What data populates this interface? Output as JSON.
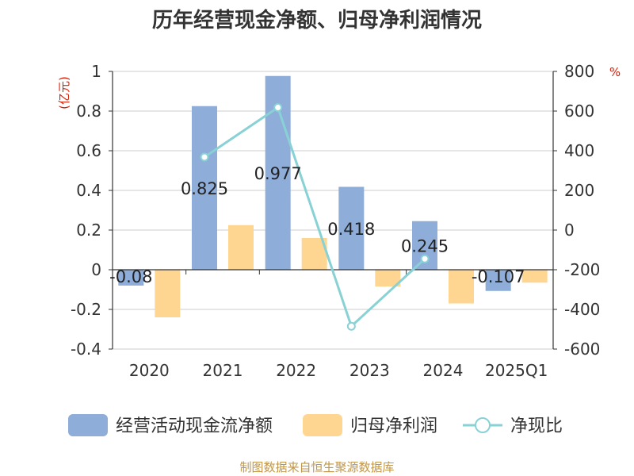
{
  "chart_data": {
    "type": "bar+line",
    "title": "历年经营现金净额、归母净利润情况",
    "categories": [
      "2020",
      "2021",
      "2022",
      "2023",
      "2024",
      "2025Q1"
    ],
    "left_axis": {
      "unit": "(亿元)",
      "range": [
        -0.4,
        1
      ],
      "ticks": [
        "1",
        "0.8",
        "0.6",
        "0.4",
        "0.2",
        "0",
        "-0.2",
        "-0.4"
      ]
    },
    "right_axis": {
      "unit": "%",
      "range": [
        -600,
        800
      ],
      "ticks": [
        "800",
        "600",
        "400",
        "200",
        "0",
        "-200",
        "-400",
        "-600"
      ]
    },
    "series": [
      {
        "name": "经营活动现金流净额",
        "type": "bar",
        "axis": "left",
        "color": "#8eadd9",
        "values": [
          -0.08,
          0.825,
          0.977,
          0.418,
          0.245,
          -0.107
        ],
        "labels": [
          "-0.08",
          "0.825",
          "0.977",
          "0.418",
          "0.245",
          "-0.107"
        ]
      },
      {
        "name": "归母净利润",
        "type": "bar",
        "axis": "left",
        "color": "#ffd592",
        "values": [
          -0.24,
          0.225,
          0.16,
          -0.085,
          -0.17,
          -0.065
        ]
      },
      {
        "name": "净现比",
        "type": "line",
        "axis": "right",
        "color": "#88d1d5",
        "values": [
          null,
          368,
          618,
          -485,
          -145,
          null
        ]
      }
    ],
    "grid": true,
    "legend": "bottom"
  },
  "source": "制图数据来自恒生聚源数据库"
}
